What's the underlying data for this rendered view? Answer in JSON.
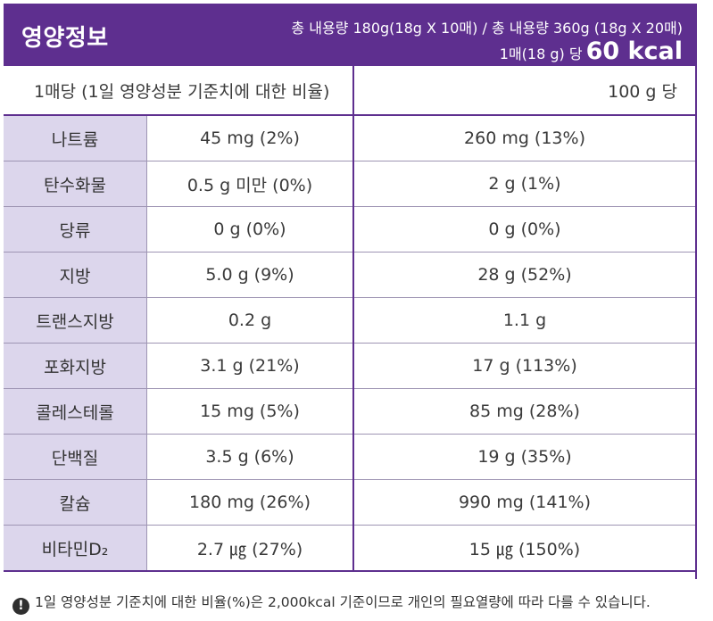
{
  "header": {
    "title": "영양정보",
    "total_content": "총 내용량 180g(18g X 10매) / 총 내용량 360g (18g X 20매)",
    "per_serving": "1매(18 g) 당",
    "kcal": "60 kcal"
  },
  "table": {
    "col_left_label": "1매당 (1일 영양성분 기준치에 대한 비율)",
    "col_right_label": "100 g 당",
    "rows": [
      {
        "name": "나트륨",
        "per_sheet": "45 mg (2%)",
        "per_100g": "260 mg (13%)"
      },
      {
        "name": "탄수화물",
        "per_sheet": "0.5 g 미만 (0%)",
        "per_100g": "2 g (1%)"
      },
      {
        "name": "당류",
        "per_sheet": "0 g (0%)",
        "per_100g": "0 g (0%)"
      },
      {
        "name": "지방",
        "per_sheet": "5.0 g (9%)",
        "per_100g": "28 g (52%)"
      },
      {
        "name": "트랜스지방",
        "per_sheet": "0.2 g",
        "per_100g": "1.1 g"
      },
      {
        "name": "포화지방",
        "per_sheet": "3.1 g (21%)",
        "per_100g": "17 g (113%)"
      },
      {
        "name": "콜레스테롤",
        "per_sheet": "15 mg (5%)",
        "per_100g": "85 mg (28%)"
      },
      {
        "name": "단백질",
        "per_sheet": "3.5 g (6%)",
        "per_100g": "19 g (35%)"
      },
      {
        "name": "칼슘",
        "per_sheet": "180 mg (26%)",
        "per_100g": "990 mg (141%)"
      },
      {
        "name": "비타민D₂",
        "per_sheet": "2.7 ㎍ (27%)",
        "per_100g": "15 ㎍ (150%)"
      }
    ]
  },
  "footnote": {
    "icon": "warning-icon",
    "glyph": "!",
    "text": "1일 영양성분 기준치에 대한 비율(%)은 2,000kcal 기준이므로 개인의 필요열량에 따라 다를 수 있습니다."
  },
  "colors": {
    "brand_purple": "#5e2f8f",
    "nutrient_cell_bg": "#dcd6ec"
  }
}
